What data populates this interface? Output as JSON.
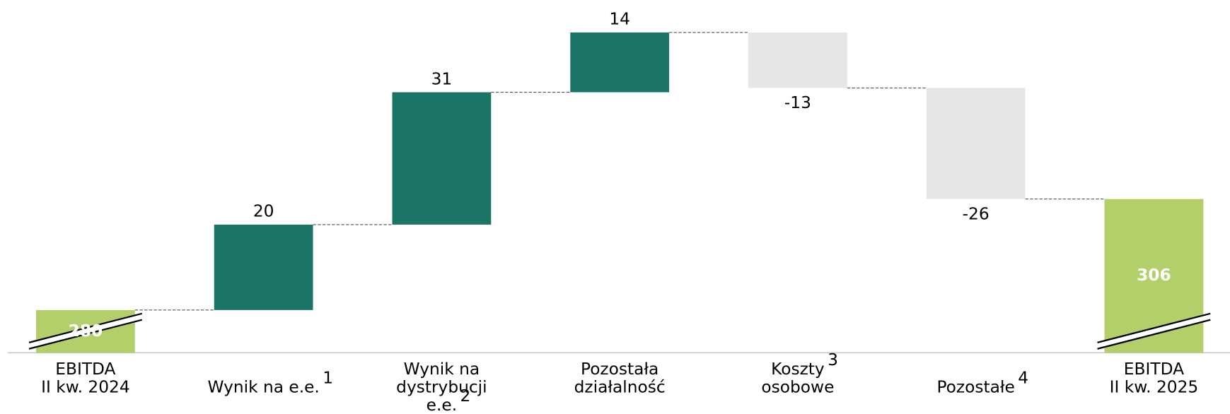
{
  "chart_data": {
    "type": "waterfall",
    "category_lines": [
      [
        "EBITDA",
        "II kw. 2024"
      ],
      [
        "Wynik na e.e."
      ],
      [
        "Wynik na",
        "dystrybucji",
        "e.e."
      ],
      [
        "Pozostała",
        "działalność"
      ],
      [
        "Koszty",
        "osobowe"
      ],
      [
        "Pozostałe"
      ],
      [
        "EBITDA",
        "II kw. 2025"
      ]
    ],
    "footnotes": [
      [
        null,
        null
      ],
      [
        "1"
      ],
      [
        null,
        null,
        "2"
      ],
      [
        null,
        null
      ],
      [
        "3",
        null
      ],
      [
        "4"
      ],
      [
        null,
        null
      ]
    ],
    "values": [
      280,
      20,
      31,
      14,
      -13,
      -26,
      306
    ],
    "measure": [
      "absolute",
      "relative",
      "relative",
      "relative",
      "relative",
      "relative",
      "total"
    ],
    "colors": {
      "total": "#b3cf6a",
      "increase": "#1a7566",
      "decrease": "#e6e6e6"
    },
    "ylim": [
      270,
      350
    ],
    "axis_break": true
  }
}
